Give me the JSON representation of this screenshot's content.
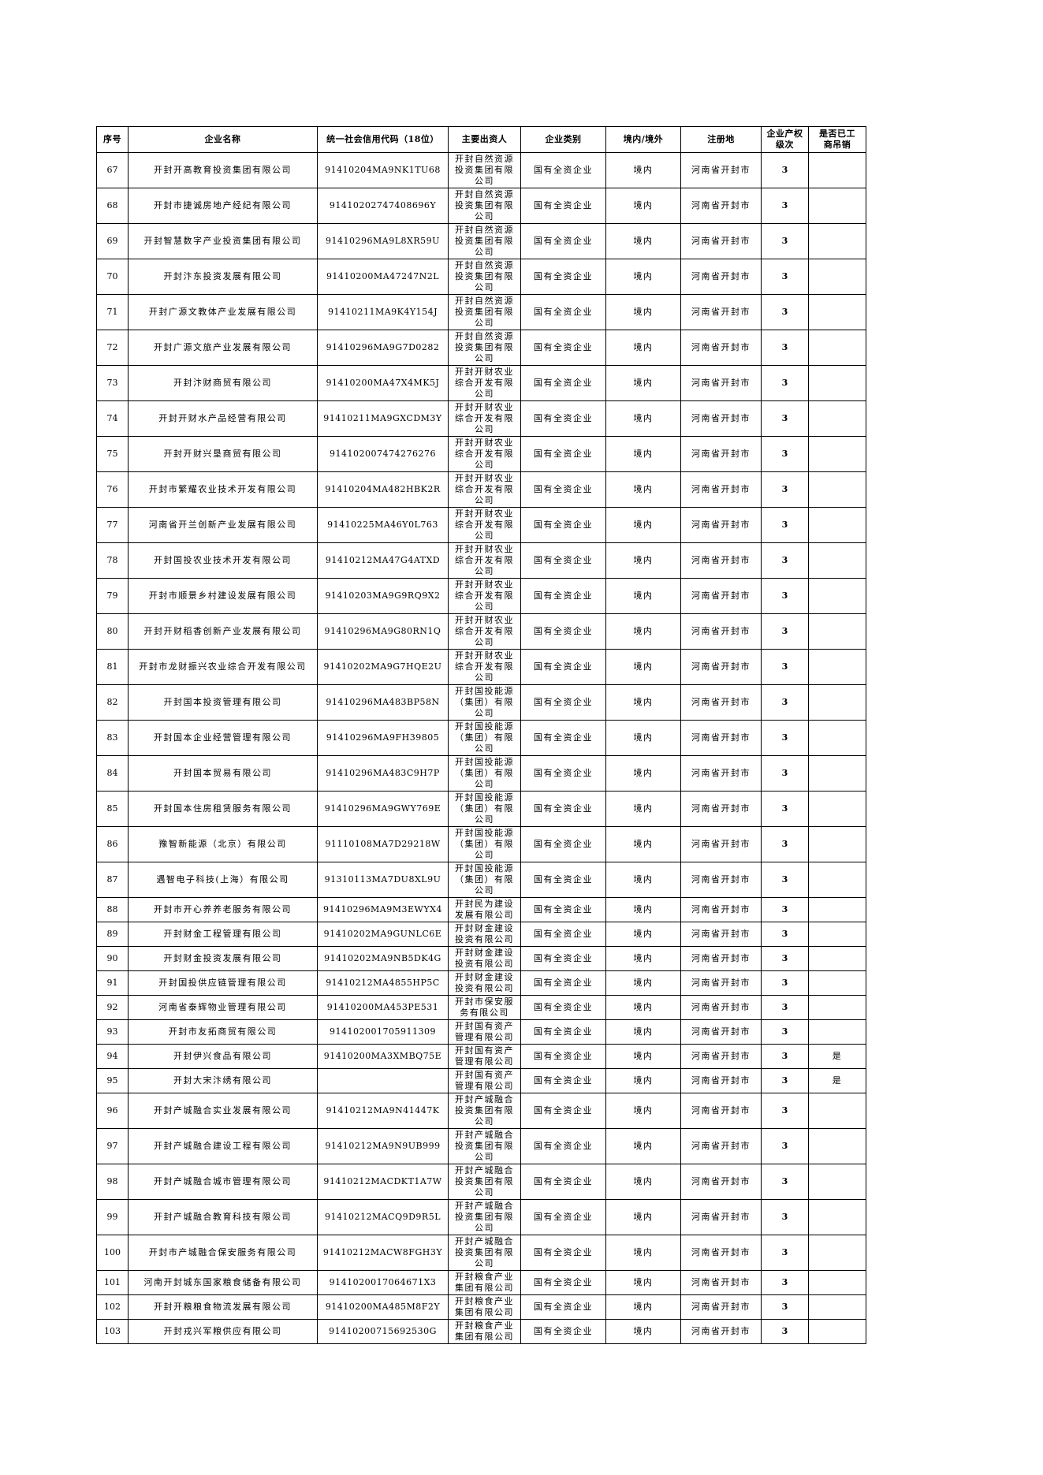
{
  "colors": {
    "text": "#000000",
    "border": "#000000",
    "background": "#ffffff"
  },
  "table": {
    "columns": [
      {
        "key": "no",
        "label": "序号"
      },
      {
        "key": "name",
        "label": "企业名称"
      },
      {
        "key": "code",
        "label": "统一社会信用代码（18位）"
      },
      {
        "key": "investor",
        "label": "主要出资人"
      },
      {
        "key": "category",
        "label": "企业类别"
      },
      {
        "key": "region",
        "label": "境内/境外"
      },
      {
        "key": "location",
        "label": "注册地"
      },
      {
        "key": "level",
        "label": "企业产权\n级次"
      },
      {
        "key": "revoked",
        "label": "是否已工\n商吊销"
      }
    ],
    "rows": [
      {
        "no": "67",
        "name": "开封开高教育投资集团有限公司",
        "code": "91410204MA9NK1TU68",
        "investor": "开封自然资源投资集团有限公司",
        "category": "国有全资企业",
        "region": "境内",
        "location": "河南省开封市",
        "level": "3",
        "revoked": ""
      },
      {
        "no": "68",
        "name": "开封市捷诚房地产经纪有限公司",
        "code": "91410202747408696Y",
        "investor": "开封自然资源投资集团有限公司",
        "category": "国有全资企业",
        "region": "境内",
        "location": "河南省开封市",
        "level": "3",
        "revoked": ""
      },
      {
        "no": "69",
        "name": "开封智慧数字产业投资集团有限公司",
        "code": "91410296MA9L8XR59U",
        "investor": "开封自然资源投资集团有限公司",
        "category": "国有全资企业",
        "region": "境内",
        "location": "河南省开封市",
        "level": "3",
        "revoked": ""
      },
      {
        "no": "70",
        "name": "开封汴东投资发展有限公司",
        "code": "91410200MA47247N2L",
        "investor": "开封自然资源投资集团有限公司",
        "category": "国有全资企业",
        "region": "境内",
        "location": "河南省开封市",
        "level": "3",
        "revoked": ""
      },
      {
        "no": "71",
        "name": "开封广源文教体产业发展有限公司",
        "code": "91410211MA9K4Y154J",
        "investor": "开封自然资源投资集团有限公司",
        "category": "国有全资企业",
        "region": "境内",
        "location": "河南省开封市",
        "level": "3",
        "revoked": ""
      },
      {
        "no": "72",
        "name": "开封广源文旅产业发展有限公司",
        "code": "91410296MA9G7D0282",
        "investor": "开封自然资源投资集团有限公司",
        "category": "国有全资企业",
        "region": "境内",
        "location": "河南省开封市",
        "level": "3",
        "revoked": ""
      },
      {
        "no": "73",
        "name": "开封汴财商贸有限公司",
        "code": "91410200MA47X4MK5J",
        "investor": "开封开财农业综合开发有限公司",
        "category": "国有全资企业",
        "region": "境内",
        "location": "河南省开封市",
        "level": "3",
        "revoked": ""
      },
      {
        "no": "74",
        "name": "开封开财水产品经营有限公司",
        "code": "91410211MA9GXCDM3Y",
        "investor": "开封开财农业综合开发有限公司",
        "category": "国有全资企业",
        "region": "境内",
        "location": "河南省开封市",
        "level": "3",
        "revoked": ""
      },
      {
        "no": "75",
        "name": "开封开财兴垦商贸有限公司",
        "code": "914102007474276276",
        "investor": "开封开财农业综合开发有限公司",
        "category": "国有全资企业",
        "region": "境内",
        "location": "河南省开封市",
        "level": "3",
        "revoked": ""
      },
      {
        "no": "76",
        "name": "开封市繁耀农业技术开发有限公司",
        "code": "91410204MA482HBK2R",
        "investor": "开封开财农业综合开发有限公司",
        "category": "国有全资企业",
        "region": "境内",
        "location": "河南省开封市",
        "level": "3",
        "revoked": ""
      },
      {
        "no": "77",
        "name": "河南省开兰创新产业发展有限公司",
        "code": "91410225MA46Y0L763",
        "investor": "开封开财农业综合开发有限公司",
        "category": "国有全资企业",
        "region": "境内",
        "location": "河南省开封市",
        "level": "3",
        "revoked": ""
      },
      {
        "no": "78",
        "name": "开封国投农业技术开发有限公司",
        "code": "91410212MA47G4ATXD",
        "investor": "开封开财农业综合开发有限公司",
        "category": "国有全资企业",
        "region": "境内",
        "location": "河南省开封市",
        "level": "3",
        "revoked": ""
      },
      {
        "no": "79",
        "name": "开封市顺景乡村建设发展有限公司",
        "code": "91410203MA9G9RQ9X2",
        "investor": "开封开财农业综合开发有限公司",
        "category": "国有全资企业",
        "region": "境内",
        "location": "河南省开封市",
        "level": "3",
        "revoked": ""
      },
      {
        "no": "80",
        "name": "开封开财稻香创新产业发展有限公司",
        "code": "91410296MA9G80RN1Q",
        "investor": "开封开财农业综合开发有限公司",
        "category": "国有全资企业",
        "region": "境内",
        "location": "河南省开封市",
        "level": "3",
        "revoked": ""
      },
      {
        "no": "81",
        "name": "开封市龙财振兴农业综合开发有限公司",
        "code": "91410202MA9G7HQE2U",
        "investor": "开封开财农业综合开发有限公司",
        "category": "国有全资企业",
        "region": "境内",
        "location": "河南省开封市",
        "level": "3",
        "revoked": ""
      },
      {
        "no": "82",
        "name": "开封国本投资管理有限公司",
        "code": "91410296MA483BP58N",
        "investor": "开封国投能源（集团）有限公司",
        "category": "国有全资企业",
        "region": "境内",
        "location": "河南省开封市",
        "level": "3",
        "revoked": ""
      },
      {
        "no": "83",
        "name": "开封国本企业经营管理有限公司",
        "code": "91410296MA9FH39805",
        "investor": "开封国投能源（集团）有限公司",
        "category": "国有全资企业",
        "region": "境内",
        "location": "河南省开封市",
        "level": "3",
        "revoked": ""
      },
      {
        "no": "84",
        "name": "开封国本贸易有限公司",
        "code": "91410296MA483C9H7P",
        "investor": "开封国投能源（集团）有限公司",
        "category": "国有全资企业",
        "region": "境内",
        "location": "河南省开封市",
        "level": "3",
        "revoked": ""
      },
      {
        "no": "85",
        "name": "开封国本住房租赁服务有限公司",
        "code": "91410296MA9GWY769E",
        "investor": "开封国投能源（集团）有限公司",
        "category": "国有全资企业",
        "region": "境内",
        "location": "河南省开封市",
        "level": "3",
        "revoked": ""
      },
      {
        "no": "86",
        "name": "豫智新能源（北京）有限公司",
        "code": "91110108MA7D29218W",
        "investor": "开封国投能源（集团）有限公司",
        "category": "国有全资企业",
        "region": "境内",
        "location": "河南省开封市",
        "level": "3",
        "revoked": ""
      },
      {
        "no": "87",
        "name": "遇智电子科技(上海）有限公司",
        "code": "91310113MA7DU8XL9U",
        "investor": "开封国投能源（集团）有限公司",
        "category": "国有全资企业",
        "region": "境内",
        "location": "河南省开封市",
        "level": "3",
        "revoked": ""
      },
      {
        "no": "88",
        "name": "开封市开心养养老服务有限公司",
        "code": "91410296MA9M3EWYX4",
        "investor": "开封民为建设发展有限公司",
        "category": "国有全资企业",
        "region": "境内",
        "location": "河南省开封市",
        "level": "3",
        "revoked": ""
      },
      {
        "no": "89",
        "name": "开封财金工程管理有限公司",
        "code": "91410202MA9GUNLC6E",
        "investor": "开封财金建设投资有限公司",
        "category": "国有全资企业",
        "region": "境内",
        "location": "河南省开封市",
        "level": "3",
        "revoked": ""
      },
      {
        "no": "90",
        "name": "开封财金投资发展有限公司",
        "code": "91410202MA9NB5DK4G",
        "investor": "开封财金建设投资有限公司",
        "category": "国有全资企业",
        "region": "境内",
        "location": "河南省开封市",
        "level": "3",
        "revoked": ""
      },
      {
        "no": "91",
        "name": "开封国投供应链管理有限公司",
        "code": "91410212MA4855HP5C",
        "investor": "开封财金建设投资有限公司",
        "category": "国有全资企业",
        "region": "境内",
        "location": "河南省开封市",
        "level": "3",
        "revoked": ""
      },
      {
        "no": "92",
        "name": "河南省泰辉物业管理有限公司",
        "code": "91410200MA453PE531",
        "investor": "开封市保安服务有限公司",
        "category": "国有全资企业",
        "region": "境内",
        "location": "河南省开封市",
        "level": "3",
        "revoked": ""
      },
      {
        "no": "93",
        "name": "开封市友拓商贸有限公司",
        "code": "914102001705911309",
        "investor": "开封国有资产管理有限公司",
        "category": "国有全资企业",
        "region": "境内",
        "location": "河南省开封市",
        "level": "3",
        "revoked": ""
      },
      {
        "no": "94",
        "name": "开封伊兴食品有限公司",
        "code": "91410200MA3XMBQ75E",
        "investor": "开封国有资产管理有限公司",
        "category": "国有全资企业",
        "region": "境内",
        "location": "河南省开封市",
        "level": "3",
        "revoked": "是"
      },
      {
        "no": "95",
        "name": "开封大宋汴绣有限公司",
        "code": "",
        "investor": "开封国有资产管理有限公司",
        "category": "国有全资企业",
        "region": "境内",
        "location": "河南省开封市",
        "level": "3",
        "revoked": "是"
      },
      {
        "no": "96",
        "name": "开封产城融合实业发展有限公司",
        "code": "91410212MA9N41447K",
        "investor": "开封产城融合投资集团有限公司",
        "category": "国有全资企业",
        "region": "境内",
        "location": "河南省开封市",
        "level": "3",
        "revoked": ""
      },
      {
        "no": "97",
        "name": "开封产城融合建设工程有限公司",
        "code": "91410212MA9N9UB999",
        "investor": "开封产城融合投资集团有限公司",
        "category": "国有全资企业",
        "region": "境内",
        "location": "河南省开封市",
        "level": "3",
        "revoked": ""
      },
      {
        "no": "98",
        "name": "开封产城融合城市管理有限公司",
        "code": "91410212MACDKT1A7W",
        "investor": "开封产城融合投资集团有限公司",
        "category": "国有全资企业",
        "region": "境内",
        "location": "河南省开封市",
        "level": "3",
        "revoked": ""
      },
      {
        "no": "99",
        "name": "开封产城融合教育科技有限公司",
        "code": "91410212MACQ9D9R5L",
        "investor": "开封产城融合投资集团有限公司",
        "category": "国有全资企业",
        "region": "境内",
        "location": "河南省开封市",
        "level": "3",
        "revoked": ""
      },
      {
        "no": "100",
        "name": "开封市产城融合保安服务有限公司",
        "code": "91410212MACW8FGH3Y",
        "investor": "开封产城融合投资集团有限公司",
        "category": "国有全资企业",
        "region": "境内",
        "location": "河南省开封市",
        "level": "3",
        "revoked": ""
      },
      {
        "no": "101",
        "name": "河南开封城东国家粮食储备有限公司",
        "code": "9141020017064671X3",
        "investor": "开封粮食产业集团有限公司",
        "category": "国有全资企业",
        "region": "境内",
        "location": "河南省开封市",
        "level": "3",
        "revoked": ""
      },
      {
        "no": "102",
        "name": "开封开粮粮食物流发展有限公司",
        "code": "91410200MA485M8F2Y",
        "investor": "开封粮食产业集团有限公司",
        "category": "国有全资企业",
        "region": "境内",
        "location": "河南省开封市",
        "level": "3",
        "revoked": ""
      },
      {
        "no": "103",
        "name": "开封戎兴军粮供应有限公司",
        "code": "91410200715692530G",
        "investor": "开封粮食产业集团有限公司",
        "category": "国有全资企业",
        "region": "境内",
        "location": "河南省开封市",
        "level": "3",
        "revoked": ""
      }
    ]
  }
}
